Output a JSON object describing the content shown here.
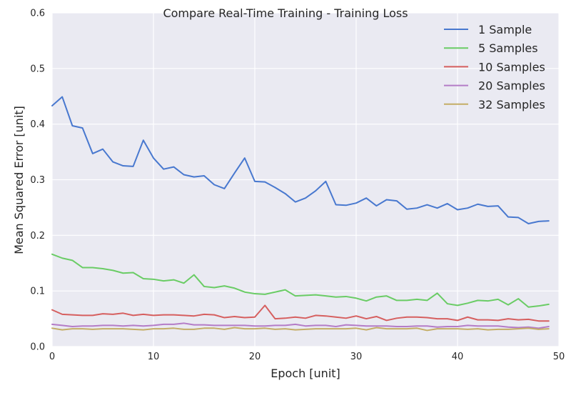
{
  "chart_data": {
    "type": "line",
    "title": "Compare Real-Time Training - Training Loss",
    "xlabel": "Epoch [unit]",
    "ylabel": "Mean Squared Error [unit]",
    "xlim": [
      0,
      50
    ],
    "ylim": [
      0.0,
      0.6
    ],
    "xticks": [
      0,
      10,
      20,
      30,
      40,
      50
    ],
    "xtick_labels": [
      "0",
      "10",
      "20",
      "30",
      "40",
      "50"
    ],
    "yticks": [
      0.0,
      0.1,
      0.2,
      0.3,
      0.4,
      0.5,
      0.6
    ],
    "ytick_labels": [
      "0.0",
      "0.1",
      "0.2",
      "0.3",
      "0.4",
      "0.5",
      "0.6"
    ],
    "grid": true,
    "legend_position": "top-right",
    "background_color": "#eaeaf2",
    "grid_color": "#ffffff",
    "x": [
      0,
      1,
      2,
      3,
      4,
      5,
      6,
      7,
      8,
      9,
      10,
      11,
      12,
      13,
      14,
      15,
      16,
      17,
      18,
      19,
      20,
      21,
      22,
      23,
      24,
      25,
      26,
      27,
      28,
      29,
      30,
      31,
      32,
      33,
      34,
      35,
      36,
      37,
      38,
      39,
      40,
      41,
      42,
      43,
      44,
      45,
      46,
      47,
      48,
      49
    ],
    "series": [
      {
        "name": "1 Sample",
        "color": "#4878cf",
        "values": [
          0.433,
          0.449,
          0.397,
          0.393,
          0.347,
          0.355,
          0.332,
          0.325,
          0.324,
          0.371,
          0.339,
          0.319,
          0.323,
          0.309,
          0.305,
          0.307,
          0.291,
          0.284,
          0.312,
          0.339,
          0.297,
          0.296,
          0.286,
          0.275,
          0.26,
          0.267,
          0.28,
          0.297,
          0.255,
          0.254,
          0.258,
          0.267,
          0.253,
          0.264,
          0.262,
          0.247,
          0.249,
          0.255,
          0.249,
          0.257,
          0.246,
          0.249,
          0.256,
          0.252,
          0.253,
          0.233,
          0.232,
          0.221,
          0.225,
          0.226
        ]
      },
      {
        "name": "5 Samples",
        "color": "#6acc65",
        "values": [
          0.166,
          0.159,
          0.155,
          0.142,
          0.142,
          0.14,
          0.137,
          0.132,
          0.133,
          0.122,
          0.121,
          0.118,
          0.12,
          0.114,
          0.129,
          0.108,
          0.106,
          0.109,
          0.105,
          0.098,
          0.095,
          0.094,
          0.098,
          0.102,
          0.091,
          0.092,
          0.093,
          0.091,
          0.089,
          0.09,
          0.087,
          0.082,
          0.089,
          0.091,
          0.083,
          0.083,
          0.085,
          0.083,
          0.096,
          0.077,
          0.074,
          0.078,
          0.083,
          0.082,
          0.085,
          0.075,
          0.086,
          0.071,
          0.073,
          0.076
        ]
      },
      {
        "name": "10 Samples",
        "color": "#d65f5f",
        "values": [
          0.066,
          0.058,
          0.057,
          0.056,
          0.056,
          0.059,
          0.058,
          0.06,
          0.056,
          0.058,
          0.056,
          0.057,
          0.057,
          0.056,
          0.055,
          0.058,
          0.057,
          0.052,
          0.054,
          0.052,
          0.053,
          0.074,
          0.05,
          0.051,
          0.053,
          0.051,
          0.056,
          0.055,
          0.053,
          0.051,
          0.055,
          0.05,
          0.054,
          0.047,
          0.051,
          0.053,
          0.053,
          0.052,
          0.05,
          0.05,
          0.047,
          0.053,
          0.048,
          0.048,
          0.047,
          0.05,
          0.048,
          0.049,
          0.046,
          0.046
        ]
      },
      {
        "name": "20 Samples",
        "color": "#b47cc7",
        "values": [
          0.04,
          0.038,
          0.036,
          0.037,
          0.037,
          0.038,
          0.038,
          0.037,
          0.038,
          0.037,
          0.038,
          0.04,
          0.04,
          0.042,
          0.039,
          0.039,
          0.038,
          0.038,
          0.038,
          0.038,
          0.037,
          0.037,
          0.038,
          0.038,
          0.04,
          0.037,
          0.038,
          0.038,
          0.036,
          0.039,
          0.038,
          0.037,
          0.037,
          0.037,
          0.036,
          0.036,
          0.037,
          0.037,
          0.035,
          0.036,
          0.036,
          0.038,
          0.037,
          0.037,
          0.037,
          0.035,
          0.034,
          0.035,
          0.033,
          0.036
        ]
      },
      {
        "name": "32 Samples",
        "color": "#c4ad66",
        "values": [
          0.033,
          0.03,
          0.032,
          0.032,
          0.031,
          0.032,
          0.032,
          0.032,
          0.031,
          0.03,
          0.032,
          0.032,
          0.033,
          0.031,
          0.031,
          0.033,
          0.033,
          0.031,
          0.034,
          0.032,
          0.032,
          0.033,
          0.031,
          0.032,
          0.03,
          0.031,
          0.032,
          0.032,
          0.032,
          0.032,
          0.033,
          0.03,
          0.034,
          0.032,
          0.032,
          0.032,
          0.033,
          0.029,
          0.032,
          0.032,
          0.032,
          0.031,
          0.032,
          0.03,
          0.031,
          0.031,
          0.032,
          0.033,
          0.031,
          0.032
        ]
      }
    ]
  }
}
